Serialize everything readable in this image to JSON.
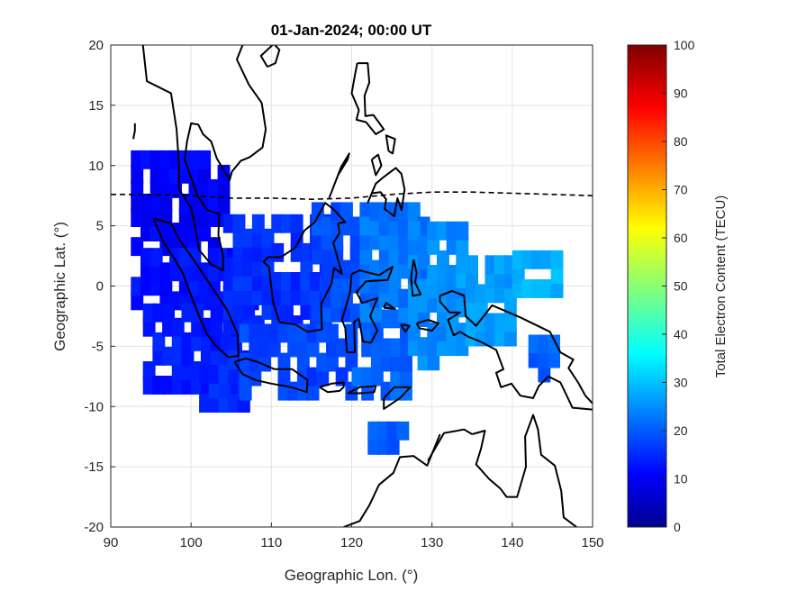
{
  "title": "01-Jan-2024; 00:00 UT",
  "xlabel": "Geographic Lon. (°)",
  "ylabel": "Geographic Lat. (°)",
  "colorbar_label": "Total Electron Content (TECU)",
  "xlim": [
    90,
    150
  ],
  "ylim": [
    -20,
    20
  ],
  "clim": [
    0,
    100
  ],
  "x_ticks": [
    "90",
    "100",
    "110",
    "120",
    "130",
    "140",
    "150"
  ],
  "y_ticks": [
    "20",
    "15",
    "10",
    "5",
    "0",
    "-5",
    "-10",
    "-15",
    "-20"
  ],
  "cb_ticks": [
    "100",
    "90",
    "80",
    "70",
    "60",
    "50",
    "40",
    "30",
    "20",
    "10",
    "0"
  ],
  "grid": true,
  "colormap": "jet",
  "magnetic_equator": [
    [
      90,
      7.6
    ],
    [
      95,
      7.6
    ],
    [
      100,
      7.5
    ],
    [
      105,
      7.3
    ],
    [
      110,
      7.3
    ],
    [
      115,
      7.2
    ],
    [
      120,
      7.3
    ],
    [
      125,
      7.6
    ],
    [
      130,
      7.8
    ],
    [
      135,
      7.8
    ],
    [
      140,
      7.7
    ],
    [
      145,
      7.6
    ],
    [
      150,
      7.5
    ]
  ],
  "chart_data": {
    "type": "heatmap",
    "value_range": [
      0,
      100
    ],
    "units": "TECU",
    "tec_patches": [
      {
        "lon_range": [
          92.5,
          104
        ],
        "lat_range": [
          2.5,
          10
        ],
        "tec": 12
      },
      {
        "lon_range": [
          92.5,
          107
        ],
        "lat_range": [
          -2,
          2.5
        ],
        "tec": 14
      },
      {
        "lon_range": [
          94,
          105
        ],
        "lat_range": [
          -9,
          -2
        ],
        "tec": 15
      },
      {
        "lon_range": [
          101,
          106
        ],
        "lat_range": [
          -10.5,
          -6.5
        ],
        "tec": 16
      },
      {
        "lon_range": [
          104,
          117
        ],
        "lat_range": [
          -4,
          5
        ],
        "tec": 17
      },
      {
        "lon_range": [
          106,
          120
        ],
        "lat_range": [
          -9.5,
          -4
        ],
        "tec": 19
      },
      {
        "lon_range": [
          115,
          122
        ],
        "lat_range": [
          -3,
          6.5
        ],
        "tec": 20
      },
      {
        "lon_range": [
          120,
          127
        ],
        "lat_range": [
          -9.5,
          -3
        ],
        "tec": 22
      },
      {
        "lon_range": [
          121,
          129
        ],
        "lat_range": [
          -3,
          6
        ],
        "tec": 24
      },
      {
        "lon_range": [
          127,
          133
        ],
        "lat_range": [
          -7,
          4
        ],
        "tec": 26
      },
      {
        "lon_range": [
          133,
          140
        ],
        "lat_range": [
          -5,
          1.5
        ],
        "tec": 28
      },
      {
        "lon_range": [
          140,
          145
        ],
        "lat_range": [
          -1,
          1.5
        ],
        "tec": 30
      },
      {
        "lon_range": [
          122,
          126
        ],
        "lat_range": [
          -14,
          -12.5
        ],
        "tec": 21
      },
      {
        "lon_range": [
          142,
          145
        ],
        "lat_range": [
          -8,
          -5.5
        ],
        "tec": 22
      }
    ]
  }
}
